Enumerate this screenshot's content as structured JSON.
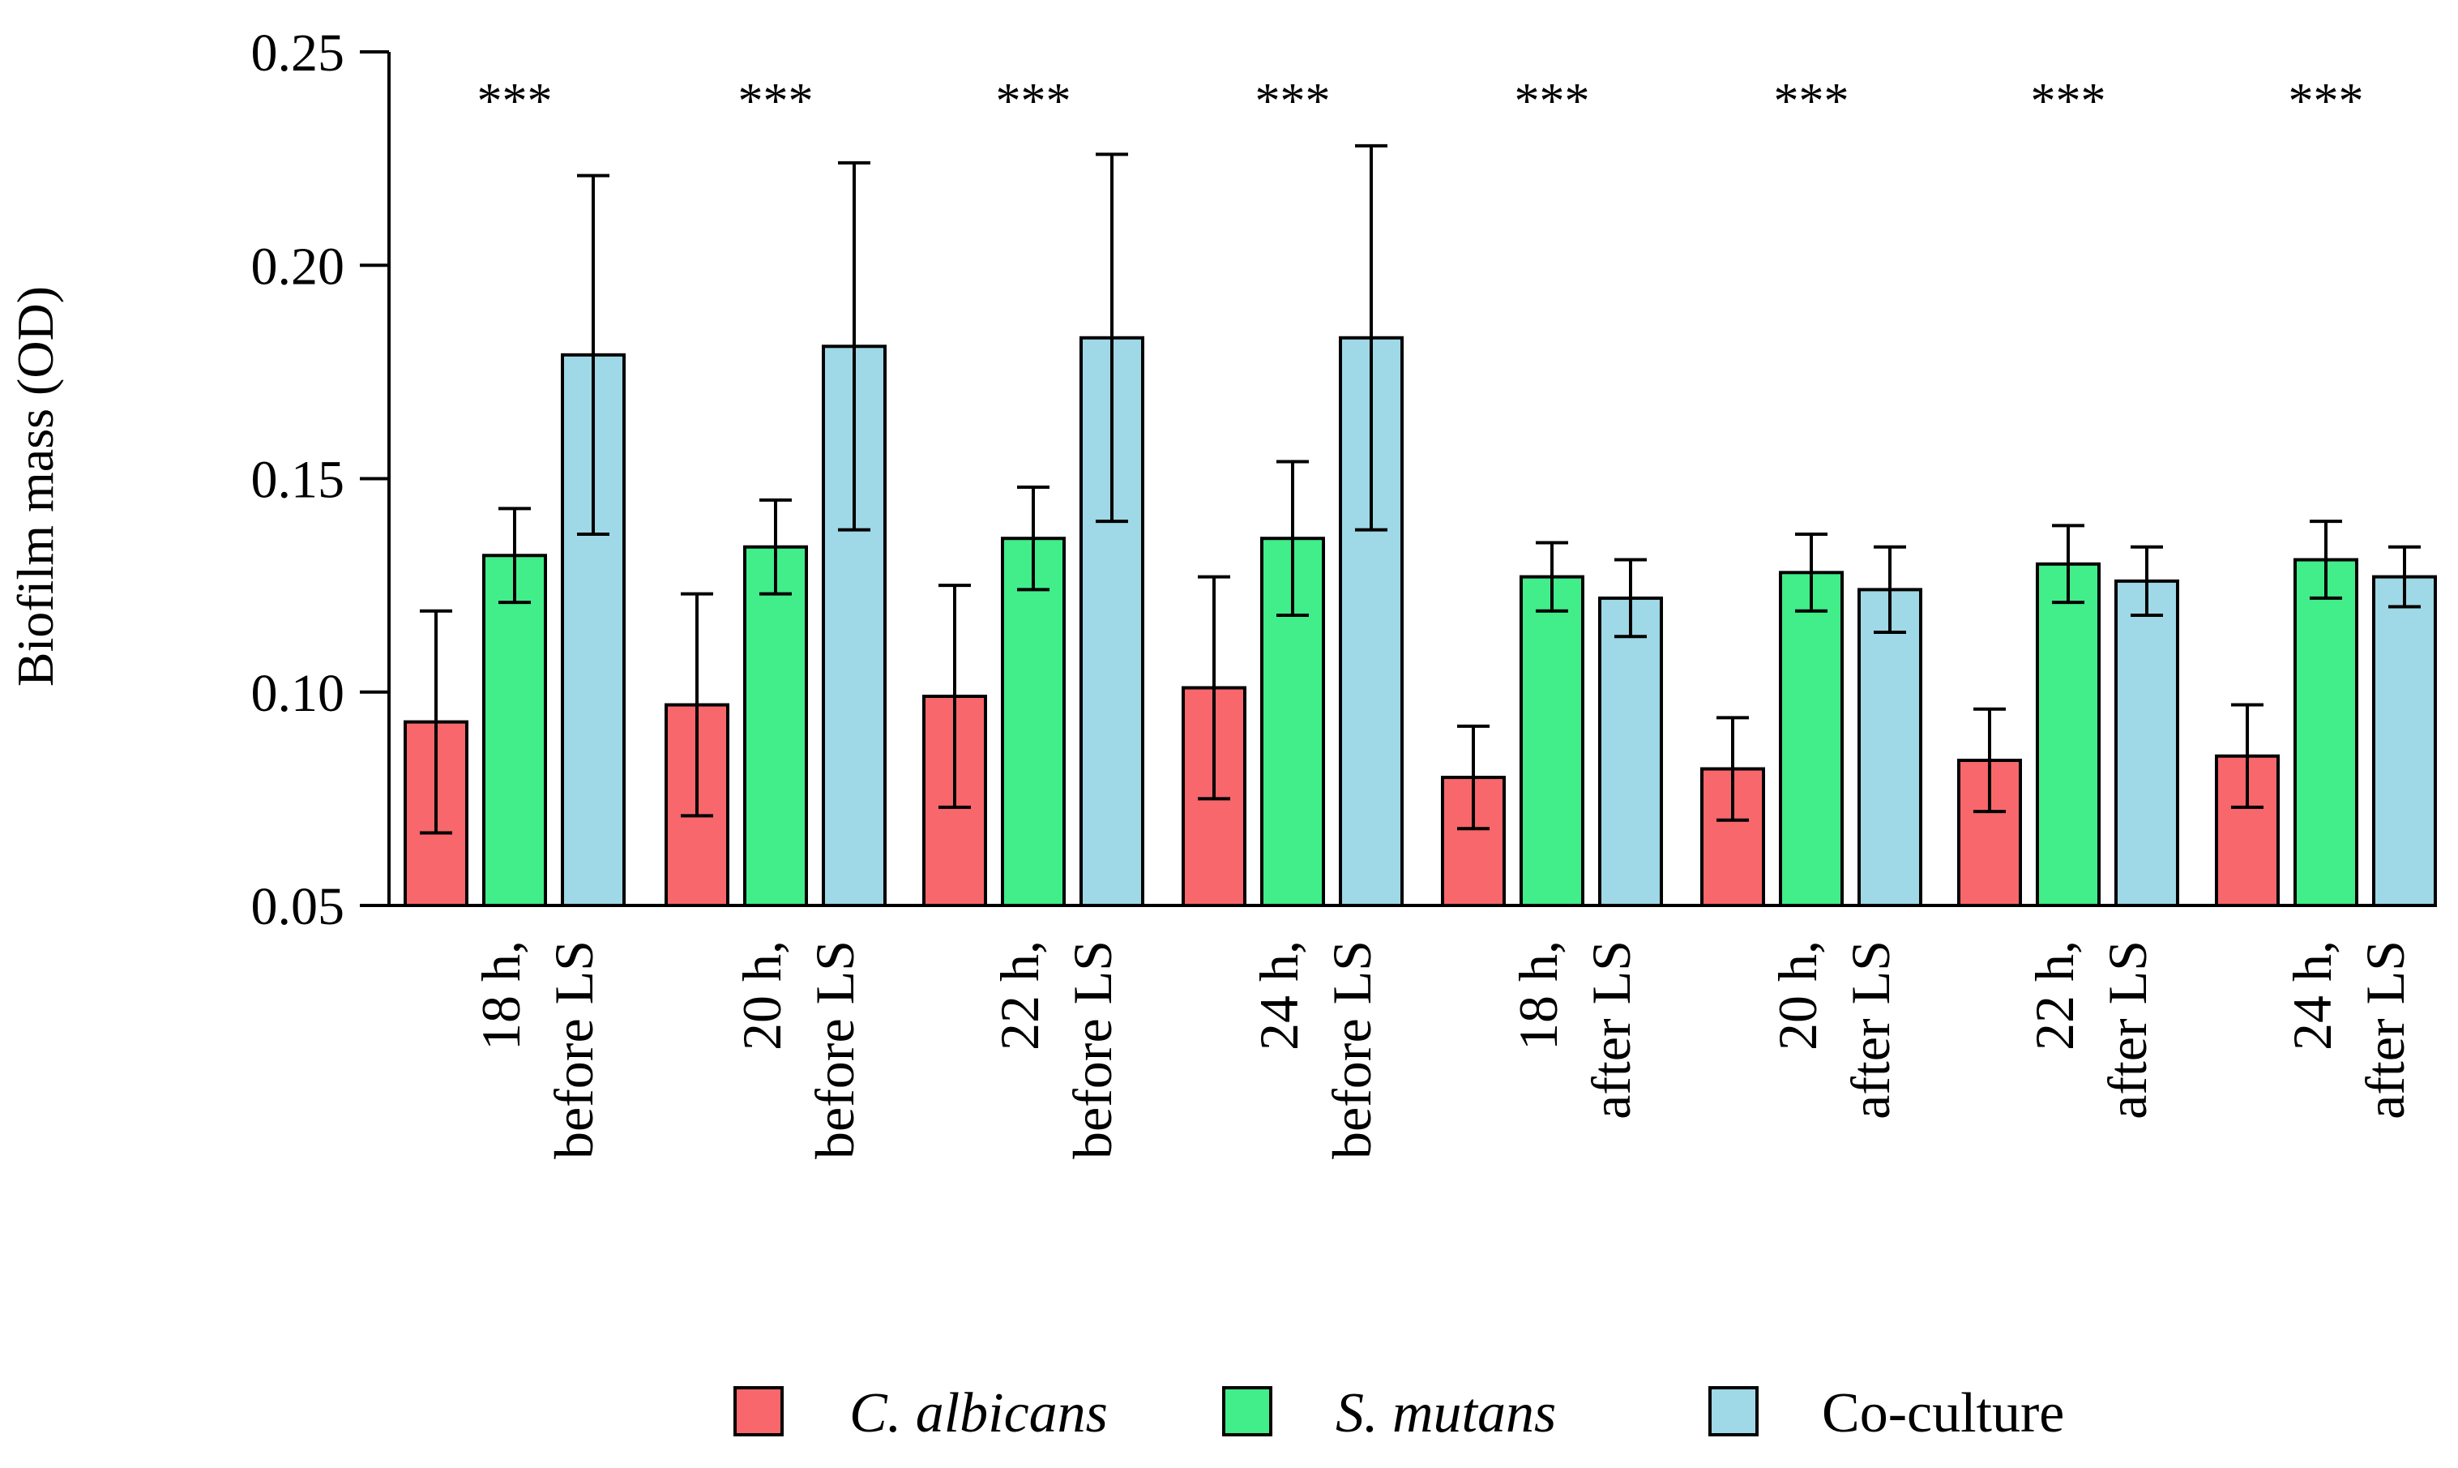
{
  "chart_data": {
    "type": "bar",
    "title": "",
    "xlabel": "",
    "ylabel": "Biofilm mass (OD)",
    "ylim": [
      0.05,
      0.25
    ],
    "yticks": [
      "0.05",
      "0.10",
      "0.15",
      "0.20",
      "0.25"
    ],
    "grid": false,
    "legend_position": "bottom",
    "categories": [
      [
        "18 h,",
        "before LS"
      ],
      [
        "20 h,",
        "before LS"
      ],
      [
        "22 h,",
        "before LS"
      ],
      [
        "24 h,",
        "before LS"
      ],
      [
        "18 h,",
        "after LS"
      ],
      [
        "20 h,",
        "after LS"
      ],
      [
        "22 h,",
        "after LS"
      ],
      [
        "24 h,",
        "after LS"
      ]
    ],
    "significance": [
      "***",
      "***",
      "***",
      "***",
      "***",
      "***",
      "***",
      "***"
    ],
    "series": [
      {
        "name": "C. albicans",
        "italic": true,
        "color": "#f8676b",
        "values": [
          0.093,
          0.097,
          0.099,
          0.101,
          0.08,
          0.082,
          0.084,
          0.085
        ],
        "error": [
          0.026,
          0.026,
          0.026,
          0.026,
          0.012,
          0.012,
          0.012,
          0.012
        ]
      },
      {
        "name": "S. mutans",
        "italic": true,
        "color": "#41ee8a",
        "values": [
          0.132,
          0.134,
          0.136,
          0.136,
          0.127,
          0.128,
          0.13,
          0.131
        ],
        "error": [
          0.011,
          0.011,
          0.012,
          0.018,
          0.008,
          0.009,
          0.009,
          0.009
        ]
      },
      {
        "name": "Co-culture",
        "italic": false,
        "color": "#9fd8e6",
        "values": [
          0.179,
          0.181,
          0.183,
          0.183,
          0.122,
          0.124,
          0.126,
          0.127
        ],
        "error": [
          0.042,
          0.043,
          0.043,
          0.045,
          0.009,
          0.01,
          0.008,
          0.007
        ]
      }
    ]
  }
}
